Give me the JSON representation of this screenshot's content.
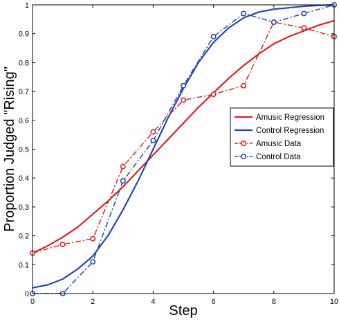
{
  "chart_data": {
    "type": "line",
    "title": "",
    "xlabel": "Step",
    "ylabel": "Proportion Judged \"Rising\"",
    "xlim": [
      0,
      10
    ],
    "ylim": [
      0,
      1
    ],
    "x_ticks": [
      "0",
      "2",
      "4",
      "6",
      "8",
      "10"
    ],
    "y_ticks": [
      "0",
      "0.1",
      "0.2",
      "0.3",
      "0.4",
      "0.5",
      "0.6",
      "0.7",
      "0.8",
      "0.9",
      "1"
    ],
    "grid": false,
    "legend_position": "right",
    "series": [
      {
        "name": "Amusic Regression",
        "color": "#e01f1f",
        "style": "solid",
        "marker": "none",
        "x": [
          0,
          0.5,
          1,
          1.5,
          2,
          2.5,
          3,
          3.5,
          4,
          4.5,
          5,
          5.5,
          6,
          6.5,
          7,
          7.5,
          8,
          8.5,
          9,
          9.5,
          10
        ],
        "y": [
          0.14,
          0.165,
          0.195,
          0.23,
          0.275,
          0.32,
          0.37,
          0.425,
          0.48,
          0.535,
          0.59,
          0.645,
          0.695,
          0.745,
          0.79,
          0.83,
          0.865,
          0.89,
          0.91,
          0.93,
          0.945
        ]
      },
      {
        "name": "Control Regression",
        "color": "#2448b3",
        "style": "solid",
        "marker": "none",
        "x": [
          0,
          0.5,
          1,
          1.5,
          2,
          2.5,
          3,
          3.5,
          4,
          4.5,
          5,
          5.5,
          6,
          6.5,
          7,
          7.5,
          8,
          8.5,
          9,
          9.5,
          10
        ],
        "y": [
          0.02,
          0.03,
          0.05,
          0.085,
          0.13,
          0.2,
          0.29,
          0.39,
          0.5,
          0.61,
          0.71,
          0.8,
          0.87,
          0.92,
          0.955,
          0.975,
          0.985,
          0.99,
          0.995,
          0.998,
          1.0
        ]
      },
      {
        "name": "Amusic Data",
        "color": "#e01f1f",
        "style": "dashdot",
        "marker": "circle",
        "x": [
          0,
          1,
          2,
          3,
          4,
          5,
          6,
          7,
          8,
          9,
          10
        ],
        "y": [
          0.14,
          0.17,
          0.19,
          0.44,
          0.56,
          0.67,
          0.69,
          0.72,
          0.94,
          0.92,
          0.89
        ]
      },
      {
        "name": "Control Data",
        "color": "#2448b3",
        "style": "dashdot",
        "marker": "circle",
        "x": [
          0,
          1,
          2,
          3,
          4,
          5,
          6,
          7,
          8,
          9,
          10
        ],
        "y": [
          0.0,
          0.0,
          0.11,
          0.39,
          0.53,
          0.72,
          0.89,
          0.97,
          0.94,
          0.97,
          1.0
        ]
      }
    ]
  }
}
